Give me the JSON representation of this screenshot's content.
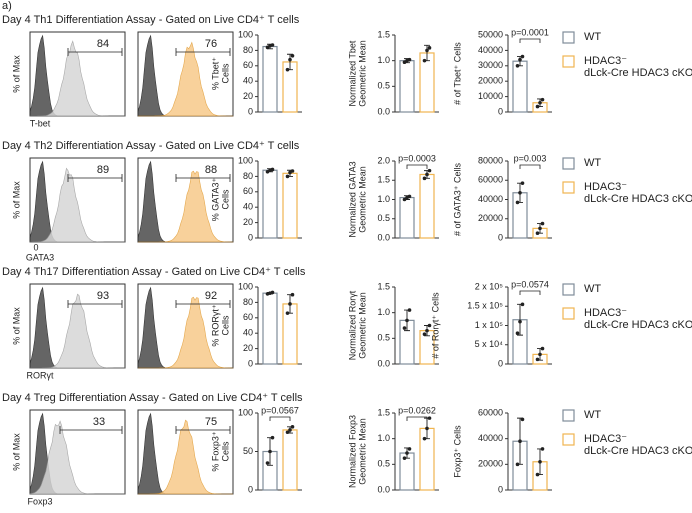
{
  "panel_label": "a)",
  "legend": [
    {
      "name": [
        "WT"
      ],
      "color": "#7f8c99"
    },
    {
      "name": [
        "HDAC3⁻",
        "dLck-Cre HDAC3 cKO"
      ],
      "color": "#f0b550"
    }
  ],
  "rows": [
    {
      "title": "Day 4 Th1 Differentiation Assay - Gated on Live CD4⁺ T cells",
      "hist_ylabel": "% of Max",
      "hist_xlabel": "T-bet",
      "gates": [
        84,
        76
      ]
    },
    {
      "title": "Day 4 Th2 Differentiation Assay - Gated on Live CD4⁺ T cells",
      "hist_ylabel": "% of Max",
      "hist_xlabel": "GATA3",
      "hist_xtick": 0,
      "gates": [
        89,
        88
      ]
    },
    {
      "title": "Day 4 Th17 Differentiation Assay - Gated on Live CD4⁺ T cells",
      "hist_ylabel": "% of Max",
      "hist_xlabel": "RORγt",
      "gates": [
        93,
        92
      ]
    },
    {
      "title": "Day 4 Treg Differentiation Assay - Gated on Live CD4⁺ T cells",
      "hist_ylabel": "% of Max",
      "hist_xlabel": "Foxp3",
      "gates": [
        33,
        75
      ]
    }
  ],
  "chart_data": [
    {
      "type": "bar",
      "ylabel": [
        "% Tbet⁺",
        "Cells"
      ],
      "ylim": [
        0,
        100
      ],
      "yticks": [
        0,
        20,
        40,
        60,
        80,
        100
      ],
      "values": [
        85,
        65
      ],
      "errors": [
        3,
        10
      ],
      "points": [
        [
          84,
          86,
          87
        ],
        [
          55,
          68,
          73
        ]
      ]
    },
    {
      "type": "bar",
      "ylabel": [
        "Normalized Tbet",
        "Geometric Mean"
      ],
      "ylim": [
        0,
        1.5
      ],
      "yticks": [
        {
          "value": 0,
          "label": "0.0"
        },
        0.5,
        {
          "value": 1,
          "label": "1.0"
        },
        1.5
      ],
      "values": [
        1.0,
        1.15
      ],
      "errors": [
        0.04,
        0.15
      ],
      "points": [
        [
          0.97,
          1.0,
          1.02
        ],
        [
          1.0,
          1.2,
          1.25
        ]
      ]
    },
    {
      "type": "bar",
      "ylabel": [
        "# of Tbet⁺ Cells"
      ],
      "ylim": [
        0,
        50000
      ],
      "yticks": [
        0,
        10000,
        20000,
        30000,
        40000,
        50000
      ],
      "values": [
        33000,
        6000
      ],
      "errors": [
        3000,
        2500
      ],
      "points": [
        [
          30000,
          34000,
          36000
        ],
        [
          3500,
          6000,
          8000
        ]
      ],
      "annotation": "p=0.0001"
    },
    {
      "type": "bar",
      "ylabel": [
        "% GATA3⁺",
        "Cells"
      ],
      "ylim": [
        0,
        100
      ],
      "yticks": [
        0,
        20,
        40,
        60,
        80,
        100
      ],
      "values": [
        88,
        84
      ],
      "errors": [
        2,
        4
      ],
      "points": [
        [
          86,
          88,
          89
        ],
        [
          80,
          85,
          87
        ]
      ]
    },
    {
      "type": "bar",
      "ylabel": [
        "Normalized GATA3",
        "Geometric Mean"
      ],
      "ylim": [
        0,
        2.0
      ],
      "yticks": [
        {
          "value": 0,
          "label": "0.0"
        },
        0.5,
        {
          "value": 1,
          "label": "1.0"
        },
        1.5,
        {
          "value": 2,
          "label": "2.0"
        }
      ],
      "values": [
        1.05,
        1.65
      ],
      "errors": [
        0.05,
        0.1
      ],
      "points": [
        [
          1.0,
          1.05,
          1.08
        ],
        [
          1.55,
          1.65,
          1.75
        ]
      ],
      "annotation": "p=0.0003"
    },
    {
      "type": "bar",
      "ylabel": [
        "# of GATA3⁺ Cells"
      ],
      "ylim": [
        0,
        80000
      ],
      "yticks": [
        0,
        20000,
        40000,
        60000,
        80000
      ],
      "values": [
        47000,
        10000
      ],
      "errors": [
        10000,
        5000
      ],
      "points": [
        [
          37000,
          47000,
          57000
        ],
        [
          5000,
          10000,
          15000
        ]
      ],
      "annotation": "p=0.003"
    },
    {
      "type": "bar",
      "ylabel": [
        "% RORγt⁺",
        "Cells"
      ],
      "ylim": [
        0,
        100
      ],
      "yticks": [
        0,
        20,
        40,
        60,
        80,
        100
      ],
      "values": [
        92,
        78
      ],
      "errors": [
        1,
        12
      ],
      "points": [
        [
          91,
          92,
          93
        ],
        [
          66,
          78,
          90
        ]
      ]
    },
    {
      "type": "bar",
      "ylabel": [
        "Normalized Rorγt",
        "Geometric Mean"
      ],
      "ylim": [
        0,
        1.5
      ],
      "yticks": [
        {
          "value": 0,
          "label": "0.0"
        },
        0.5,
        {
          "value": 1,
          "label": "1.0"
        },
        1.5
      ],
      "values": [
        0.85,
        0.65
      ],
      "errors": [
        0.2,
        0.1
      ],
      "points": [
        [
          0.7,
          0.85,
          1.05
        ],
        [
          0.58,
          0.65,
          0.75
        ]
      ]
    },
    {
      "type": "bar",
      "ylabel": [
        "# of Rorγt⁺ Cells"
      ],
      "ylim": [
        0,
        200000
      ],
      "yticks": [
        0,
        {
          "value": 50000,
          "label": "5 x 10⁴"
        },
        {
          "value": 100000,
          "label": "1 x 10⁵"
        },
        {
          "value": 150000,
          "label": "1.5 x 10⁵"
        },
        {
          "value": 200000,
          "label": "2 x 10⁵"
        }
      ],
      "values": [
        115000,
        25000
      ],
      "errors": [
        40000,
        15000
      ],
      "points": [
        [
          80000,
          110000,
          155000
        ],
        [
          12000,
          25000,
          40000
        ]
      ],
      "annotation": "p=0.0574"
    },
    {
      "type": "bar",
      "ylabel": [
        "% Foxp3⁺",
        "Cells"
      ],
      "ylim": [
        0,
        100
      ],
      "yticks": [
        0,
        50,
        100
      ],
      "values": [
        50,
        78
      ],
      "errors": [
        18,
        4
      ],
      "points": [
        [
          35,
          50,
          68
        ],
        [
          75,
          78,
          82
        ]
      ],
      "annotation": "p=0.0567"
    },
    {
      "type": "bar",
      "ylabel": [
        "Normalized Foxp3",
        "Geometric Mean"
      ],
      "ylim": [
        0,
        1.5
      ],
      "yticks": [
        {
          "value": 0,
          "label": "0.0"
        },
        0.5,
        {
          "value": 1,
          "label": "1.0"
        },
        1.5
      ],
      "values": [
        0.72,
        1.2
      ],
      "errors": [
        0.1,
        0.2
      ],
      "points": [
        [
          0.62,
          0.72,
          0.8
        ],
        [
          1.0,
          1.2,
          1.4
        ]
      ],
      "annotation": "p=0.0262"
    },
    {
      "type": "bar",
      "ylabel": [
        "Foxp3⁺ Cells"
      ],
      "ylim": [
        0,
        60000
      ],
      "yticks": [
        0,
        20000,
        40000,
        60000
      ],
      "values": [
        38000,
        22000
      ],
      "errors": [
        18000,
        10000
      ],
      "points": [
        [
          20000,
          38000,
          55000
        ],
        [
          12000,
          22000,
          32000
        ]
      ]
    }
  ]
}
